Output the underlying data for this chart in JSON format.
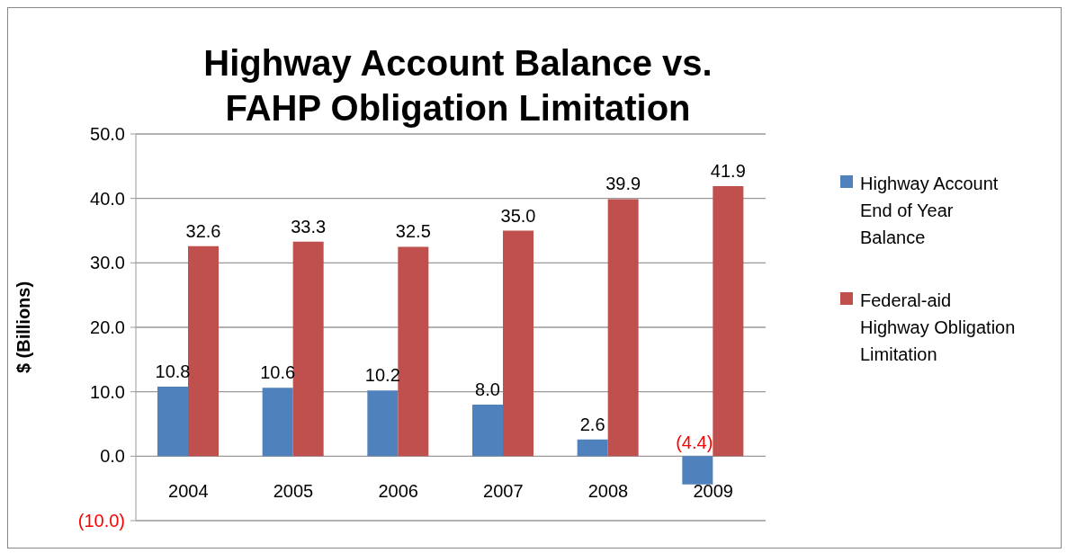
{
  "chart_data": {
    "type": "bar",
    "title": "Highway Account Balance vs. FAHP Obligation Limitation",
    "ylabel": "$ (Billions)",
    "categories": [
      "2004",
      "2005",
      "2006",
      "2007",
      "2008",
      "2009"
    ],
    "series": [
      {
        "name": "Highway Account End of Year Balance",
        "color": "#4f81bd",
        "values": [
          10.8,
          10.6,
          10.2,
          8.0,
          2.6,
          -4.4
        ],
        "value_labels": [
          "10.8",
          "10.6",
          "10.2",
          "8.0",
          "2.6",
          "(4.4)"
        ]
      },
      {
        "name": "Federal-aid Highway Obligation Limitation",
        "color": "#c0504d",
        "values": [
          32.6,
          33.3,
          32.5,
          35.0,
          39.9,
          41.9
        ],
        "value_labels": [
          "32.6",
          "33.3",
          "32.5",
          "35.0",
          "39.9",
          "41.9"
        ]
      }
    ],
    "ylim": [
      -10,
      50
    ],
    "yticks": [
      {
        "value": -10,
        "label": "(10.0)"
      },
      {
        "value": 0,
        "label": "0.0"
      },
      {
        "value": 10,
        "label": "10.0"
      },
      {
        "value": 20,
        "label": "20.0"
      },
      {
        "value": 30,
        "label": "30.0"
      },
      {
        "value": 40,
        "label": "40.0"
      },
      {
        "value": 50,
        "label": "50.0"
      }
    ],
    "grid": "y",
    "legend": "right"
  }
}
